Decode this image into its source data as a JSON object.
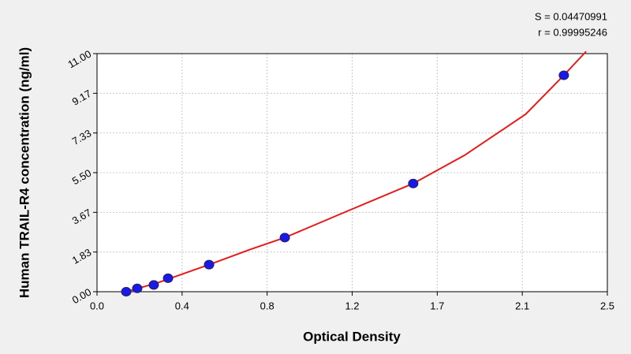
{
  "chart_data": {
    "type": "scatter",
    "x_label": "Optical Density",
    "y_label": "Human TRAIL-R4 concentration (ng/ml)",
    "annotations": [
      "S = 0.04470991",
      "r = 0.99995246"
    ],
    "x": [
      0.143,
      0.197,
      0.278,
      0.348,
      0.549,
      0.92,
      1.549,
      2.287
    ],
    "values": [
      0,
      0.156,
      0.312,
      0.625,
      1.25,
      2.5,
      5,
      10
    ],
    "color": "#1a1ae6",
    "fit": {
      "color": "#e61a1a",
      "x": [
        0.143,
        0.3,
        0.549,
        0.75,
        0.92,
        1.2,
        1.549,
        1.8,
        2.1,
        2.287,
        2.396
      ],
      "y": [
        0,
        0.42,
        1.25,
        1.95,
        2.5,
        3.62,
        5,
        6.3,
        8.2,
        10,
        11.1
      ]
    },
    "xlim": [
      0,
      2.5
    ],
    "ylim": [
      0,
      11
    ],
    "xticks": [
      {
        "value": 0,
        "label": "0.0"
      },
      {
        "value": 0.4167,
        "label": "0.4"
      },
      {
        "value": 0.8333,
        "label": "0.8"
      },
      {
        "value": 1.25,
        "label": "1.2"
      },
      {
        "value": 1.6667,
        "label": "1.7"
      },
      {
        "value": 2.0833,
        "label": "2.1"
      },
      2.5
    ],
    "yticks": [
      {
        "value": 0,
        "label": "0.00"
      },
      {
        "value": 1.8333,
        "label": "1.83"
      },
      {
        "value": 3.6667,
        "label": "3.67"
      },
      {
        "value": 5.5,
        "label": "5.50"
      },
      {
        "value": 7.3333,
        "label": "7.33"
      },
      {
        "value": 9.1667,
        "label": "9.17"
      },
      {
        "value": 11,
        "label": "11.00"
      }
    ],
    "grid": true
  }
}
